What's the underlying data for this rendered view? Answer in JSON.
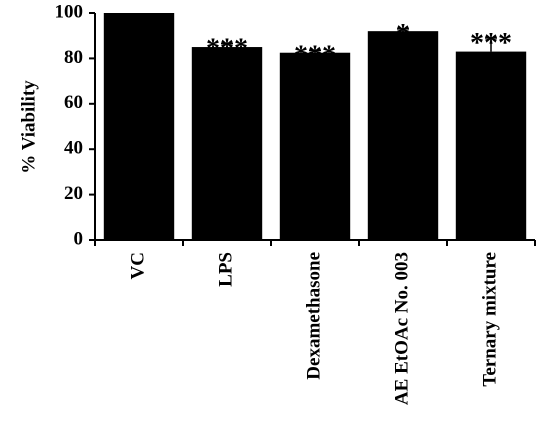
{
  "chart_data": {
    "type": "bar",
    "y_label": "% Viability",
    "categories": [
      "VC",
      "LPS",
      "Dexamethasone",
      "AE EtOAc No. 003",
      "Ternary mixture"
    ],
    "values": [
      100,
      85,
      82.5,
      92,
      83
    ],
    "errors": [
      0,
      1.5,
      1,
      1,
      6
    ],
    "annotations": [
      null,
      "***",
      "***",
      "*",
      "***"
    ],
    "color": "#000000",
    "ylim": [
      0,
      100
    ],
    "yticks": [
      0,
      20,
      40,
      60,
      80,
      100
    ],
    "grid": false
  }
}
